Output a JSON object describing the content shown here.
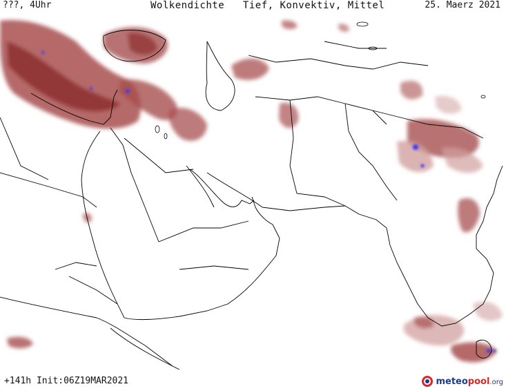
{
  "header": {
    "left": "???, 4Uhr",
    "title": "Wolkendichte   Tief, Konvektiv, Mittel",
    "date": "25. Maerz 2021"
  },
  "footer": {
    "run": "+141h Init:06Z19MAR2021"
  },
  "brand": {
    "name_part1": "meteo",
    "name_part2": "pool",
    "suffix": ".org",
    "logo_icon": "meteopool-logo-icon"
  },
  "colors": {
    "cloud_dark": "#8b2c2c",
    "cloud_mid": "#a85050",
    "cloud_light": "#d2a0a0",
    "convective": "#3a3aff",
    "border": "#000000"
  }
}
